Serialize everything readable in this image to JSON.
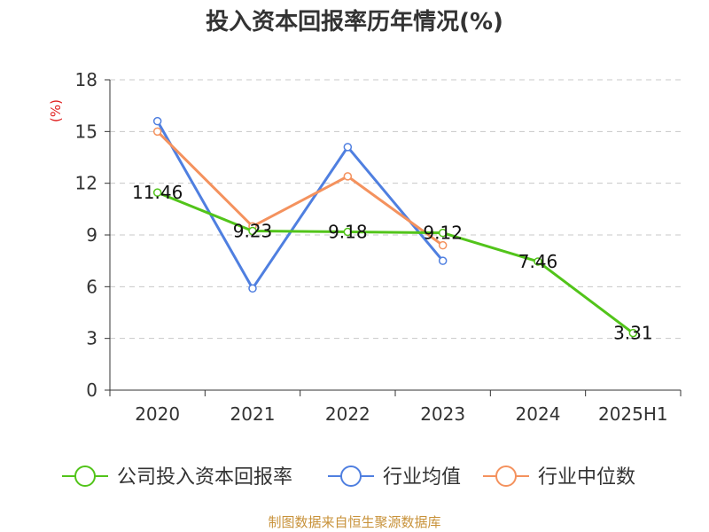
{
  "chart_data": {
    "type": "line",
    "title": "投入资本回报率历年情况(%)",
    "ylabel": "(%)",
    "categories": [
      "2020",
      "2021",
      "2022",
      "2023",
      "2024",
      "2025H1"
    ],
    "yticks": [
      "0",
      "3",
      "6",
      "9",
      "12",
      "15",
      "18"
    ],
    "ylim": [
      0,
      18
    ],
    "grid": true,
    "legend_position": "bottom",
    "series": [
      {
        "name": "公司投入资本回报率",
        "color": "#52c41a",
        "values": [
          11.46,
          9.23,
          9.18,
          9.12,
          7.46,
          3.31
        ],
        "labels": [
          "11.46",
          "9.23",
          "9.18",
          "9.12",
          "7.46",
          "3.31"
        ]
      },
      {
        "name": "行业均值",
        "color": "#4f7fe0",
        "values": [
          15.6,
          5.9,
          14.1,
          7.5,
          null,
          null
        ]
      },
      {
        "name": "行业中位数",
        "color": "#f4925e",
        "values": [
          15.0,
          9.5,
          12.4,
          8.4,
          null,
          null
        ]
      }
    ]
  },
  "source": "制图数据来自恒生聚源数据库"
}
